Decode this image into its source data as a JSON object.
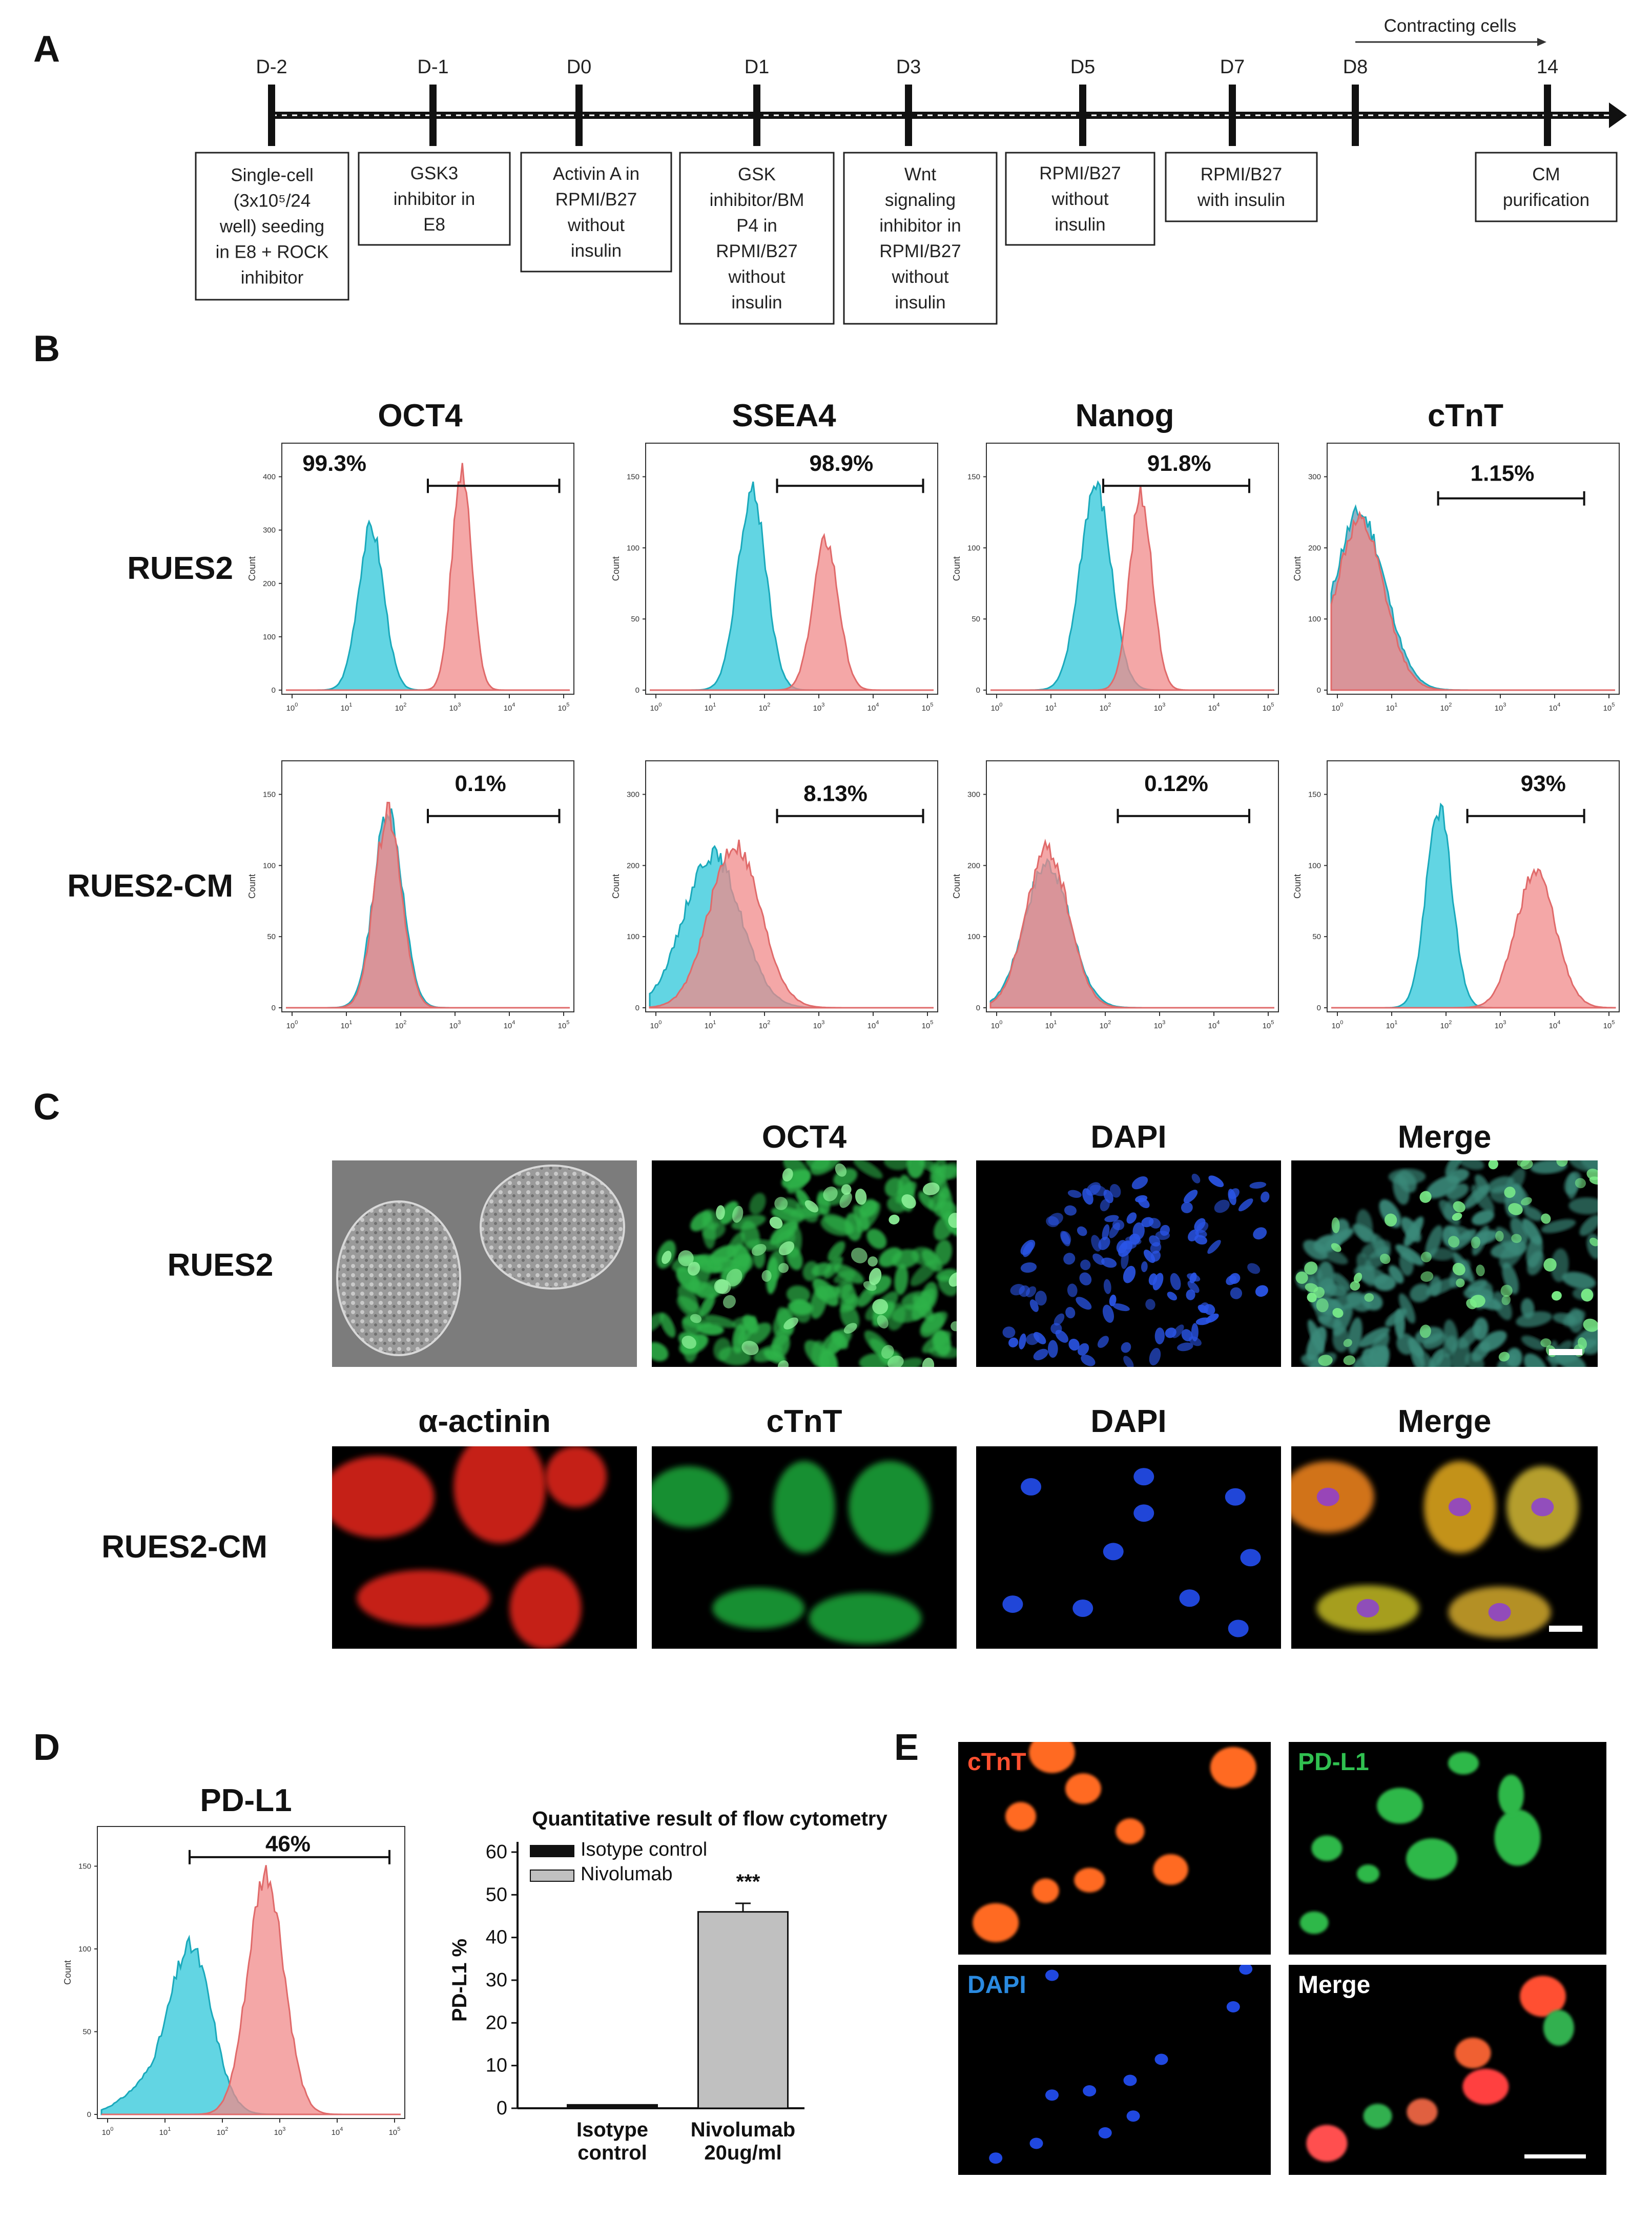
{
  "panels": {
    "a": "A",
    "b": "B",
    "c": "C",
    "d": "D",
    "e": "E"
  },
  "timeline": {
    "days": [
      "D-2",
      "D-1",
      "D0",
      "D1",
      "D3",
      "D5",
      "D7",
      "D8",
      "14"
    ],
    "contracting_label": "Contracting cells",
    "steps": [
      [
        "Single-cell",
        "(3x10⁵/24",
        "well) seeding",
        "in E8 + ROCK",
        "inhibitor"
      ],
      [
        "GSK3",
        "inhibitor in",
        "E8"
      ],
      [
        "Activin A in",
        "RPMI/B27",
        "without",
        "insulin"
      ],
      [
        "GSK",
        "inhibitor/BM",
        "P4 in",
        "RPMI/B27",
        "without",
        "insulin"
      ],
      [
        "Wnt",
        "signaling",
        "inhibitor in",
        "RPMI/B27",
        "without",
        "insulin"
      ],
      [
        "RPMI/B27",
        "without",
        "insulin"
      ],
      [
        "RPMI/B27",
        "with insulin"
      ],
      [
        "CM",
        "purification"
      ]
    ]
  },
  "flow": {
    "markers": [
      "OCT4",
      "SSEA4",
      "Nanog",
      "cTnT"
    ],
    "rows": [
      "RUES2",
      "RUES2-CM"
    ],
    "percent": [
      [
        "99.3%",
        "98.9%",
        "91.8%",
        "1.15%"
      ],
      [
        "0.1%",
        "8.13%",
        "0.12%",
        "93%"
      ]
    ],
    "y_axis_label": "Count",
    "colors": {
      "isotype": "#2ec7d9",
      "stain": "#f08a8a",
      "overlap": "#6e9ab3"
    }
  },
  "microscopy": {
    "rows": [
      "RUES2",
      "RUES2-CM"
    ],
    "headers_top": [
      "OCT4",
      "DAPI",
      "Merge"
    ],
    "headers_bottom": [
      "α-actinin",
      "cTnT",
      "DAPI",
      "Merge"
    ]
  },
  "pdl1": {
    "title": "PD-L1",
    "percent": "46%",
    "y_axis_label": "Count"
  },
  "chart_data": {
    "type": "bar",
    "title": "Quantitative result of flow cytometry",
    "xlabel": "",
    "ylabel": "PD-L1 %",
    "ylim": [
      0,
      60
    ],
    "yticks": [
      0,
      10,
      20,
      30,
      40,
      50,
      60
    ],
    "categories": [
      [
        "Isotype",
        "control"
      ],
      [
        "Nivolumab",
        "20ug/ml"
      ]
    ],
    "values": [
      0.8,
      46
    ],
    "errors": [
      0,
      2
    ],
    "colors": [
      "#111111",
      "#c0c0c0"
    ],
    "legend": [
      {
        "name": "Isotype control",
        "color": "#111111"
      },
      {
        "name": "Nivolumab",
        "color": "#c0c0c0"
      }
    ],
    "legend_position": "top-left",
    "annotation": "***"
  },
  "panel_e": {
    "labels": [
      "cTnT",
      "PD-L1",
      "DAPI",
      "Merge"
    ]
  }
}
